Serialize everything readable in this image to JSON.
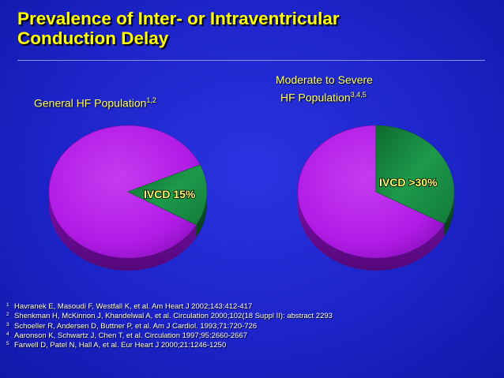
{
  "slide": {
    "title_line1": "Prevalence of Inter- or Intraventricular",
    "title_line2": "Conduction Delay"
  },
  "chart_data": [
    {
      "type": "pie",
      "title": "General HF Population",
      "title_superscript": "1,2",
      "slices": [
        {
          "label": "IVCD 15%",
          "value": 15
        },
        {
          "label": "",
          "value": 85
        }
      ]
    },
    {
      "type": "pie",
      "title_line1": "Moderate to Severe",
      "title_line2": "HF Population",
      "title_superscript": "3,4,5",
      "slices": [
        {
          "label": "IVCD >30%",
          "value": 33
        },
        {
          "label": "",
          "value": 67
        }
      ]
    }
  ],
  "colors": {
    "title": "#ffff00",
    "chart_title": "#ffff66",
    "ivcd_slice": "#1c9a4a",
    "other_slice": "#b41ee8",
    "slide_background": "#1c24c9"
  },
  "references": [
    {
      "num": "1",
      "text": "Havranek E, Masoudi F, Westfall K, et al. Am Heart J 2002;143:412-417"
    },
    {
      "num": "2",
      "text": "Shenkman H, McKinnon J, Khandelwal A, et al. Circulation 2000;102(18 Suppl II): abstract 2293"
    },
    {
      "num": "3",
      "text": "Schoeller R, Andersen D, Buttner P, et al. Am J Cardiol. 1993;71:720-726"
    },
    {
      "num": "4",
      "text": "Aaronson K, Schwartz J, Chen T, et al. Circulation 1997;95:2660-2667"
    },
    {
      "num": "5",
      "text": "Farwell D, Patel N, Hall A, et al. Eur Heart J 2000;21:1246-1250"
    }
  ]
}
